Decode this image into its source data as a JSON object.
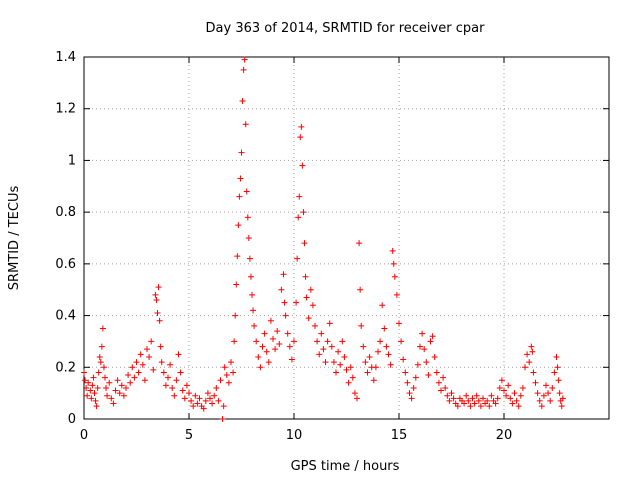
{
  "chart_data": {
    "type": "scatter",
    "title": "Day 363 of 2014, SRMTID for receiver cpar",
    "xlabel": "GPS time / hours",
    "ylabel": "SRMTID / TECUs",
    "xlim": [
      0,
      25
    ],
    "ylim": [
      0,
      1.4
    ],
    "grid": true,
    "marker": "+",
    "color": "#ff0000",
    "x_ticks": [
      0,
      5,
      10,
      15,
      20
    ],
    "x_tick_labels": [
      "0",
      "5",
      "10",
      "15",
      "20"
    ],
    "y_ticks": [
      0,
      0.2,
      0.4,
      0.6,
      0.8,
      1.0,
      1.2,
      1.4
    ],
    "y_tick_labels": [
      "0",
      "0.2",
      "0.4",
      "0.6",
      "0.8",
      "1",
      "1.2",
      "1.4"
    ],
    "series": [
      {
        "name": "SRMTID",
        "points": [
          [
            0.0,
            0.18
          ],
          [
            0.05,
            0.15
          ],
          [
            0.1,
            0.12
          ],
          [
            0.15,
            0.09
          ],
          [
            0.2,
            0.14
          ],
          [
            0.3,
            0.11
          ],
          [
            0.35,
            0.08
          ],
          [
            0.4,
            0.13
          ],
          [
            0.45,
            0.16
          ],
          [
            0.5,
            0.1
          ],
          [
            0.55,
            0.07
          ],
          [
            0.6,
            0.05
          ],
          [
            0.65,
            0.12
          ],
          [
            0.7,
            0.18
          ],
          [
            0.75,
            0.24
          ],
          [
            0.8,
            0.22
          ],
          [
            0.85,
            0.28
          ],
          [
            0.9,
            0.35
          ],
          [
            0.95,
            0.2
          ],
          [
            1.0,
            0.16
          ],
          [
            1.05,
            0.12
          ],
          [
            1.1,
            0.09
          ],
          [
            1.2,
            0.14
          ],
          [
            1.3,
            0.08
          ],
          [
            1.4,
            0.06
          ],
          [
            1.5,
            0.11
          ],
          [
            1.6,
            0.15
          ],
          [
            1.7,
            0.1
          ],
          [
            1.8,
            0.13
          ],
          [
            1.9,
            0.09
          ],
          [
            2.0,
            0.12
          ],
          [
            2.1,
            0.17
          ],
          [
            2.2,
            0.14
          ],
          [
            2.3,
            0.2
          ],
          [
            2.4,
            0.16
          ],
          [
            2.5,
            0.22
          ],
          [
            2.6,
            0.18
          ],
          [
            2.7,
            0.25
          ],
          [
            2.8,
            0.21
          ],
          [
            2.9,
            0.15
          ],
          [
            3.0,
            0.27
          ],
          [
            3.1,
            0.24
          ],
          [
            3.2,
            0.3
          ],
          [
            3.3,
            0.19
          ],
          [
            3.4,
            0.48
          ],
          [
            3.45,
            0.46
          ],
          [
            3.5,
            0.41
          ],
          [
            3.55,
            0.51
          ],
          [
            3.6,
            0.38
          ],
          [
            3.65,
            0.28
          ],
          [
            3.7,
            0.22
          ],
          [
            3.8,
            0.18
          ],
          [
            3.9,
            0.13
          ],
          [
            4.0,
            0.16
          ],
          [
            4.1,
            0.21
          ],
          [
            4.2,
            0.12
          ],
          [
            4.3,
            0.09
          ],
          [
            4.4,
            0.15
          ],
          [
            4.5,
            0.25
          ],
          [
            4.6,
            0.18
          ],
          [
            4.7,
            0.11
          ],
          [
            4.8,
            0.08
          ],
          [
            4.9,
            0.13
          ],
          [
            5.0,
            0.1
          ],
          [
            5.1,
            0.07
          ],
          [
            5.2,
            0.05
          ],
          [
            5.3,
            0.09
          ],
          [
            5.4,
            0.06
          ],
          [
            5.5,
            0.08
          ],
          [
            5.6,
            0.05
          ],
          [
            5.7,
            0.04
          ],
          [
            5.8,
            0.07
          ],
          [
            5.9,
            0.1
          ],
          [
            6.0,
            0.08
          ],
          [
            6.1,
            0.06
          ],
          [
            6.2,
            0.09
          ],
          [
            6.3,
            0.12
          ],
          [
            6.4,
            0.07
          ],
          [
            6.5,
            0.15
          ],
          [
            6.6,
            0.0
          ],
          [
            6.65,
            0.05
          ],
          [
            6.7,
            0.2
          ],
          [
            6.8,
            0.17
          ],
          [
            6.9,
            0.14
          ],
          [
            7.0,
            0.22
          ],
          [
            7.1,
            0.18
          ],
          [
            7.15,
            0.3
          ],
          [
            7.2,
            0.4
          ],
          [
            7.25,
            0.52
          ],
          [
            7.3,
            0.63
          ],
          [
            7.35,
            0.75
          ],
          [
            7.4,
            0.86
          ],
          [
            7.45,
            0.93
          ],
          [
            7.5,
            1.03
          ],
          [
            7.55,
            1.23
          ],
          [
            7.6,
            1.35
          ],
          [
            7.65,
            1.39
          ],
          [
            7.7,
            1.14
          ],
          [
            7.75,
            0.88
          ],
          [
            7.8,
            0.78
          ],
          [
            7.85,
            0.7
          ],
          [
            7.9,
            0.62
          ],
          [
            7.95,
            0.55
          ],
          [
            8.0,
            0.48
          ],
          [
            8.05,
            0.42
          ],
          [
            8.1,
            0.36
          ],
          [
            8.2,
            0.3
          ],
          [
            8.3,
            0.24
          ],
          [
            8.4,
            0.2
          ],
          [
            8.5,
            0.28
          ],
          [
            8.6,
            0.33
          ],
          [
            8.7,
            0.26
          ],
          [
            8.8,
            0.22
          ],
          [
            8.9,
            0.38
          ],
          [
            9.0,
            0.31
          ],
          [
            9.1,
            0.27
          ],
          [
            9.2,
            0.34
          ],
          [
            9.3,
            0.29
          ],
          [
            9.4,
            0.5
          ],
          [
            9.5,
            0.56
          ],
          [
            9.55,
            0.45
          ],
          [
            9.6,
            0.4
          ],
          [
            9.7,
            0.33
          ],
          [
            9.8,
            0.28
          ],
          [
            9.9,
            0.23
          ],
          [
            10.0,
            0.3
          ],
          [
            10.1,
            0.45
          ],
          [
            10.15,
            0.62
          ],
          [
            10.2,
            0.78
          ],
          [
            10.25,
            0.86
          ],
          [
            10.3,
            1.09
          ],
          [
            10.35,
            1.13
          ],
          [
            10.4,
            0.98
          ],
          [
            10.45,
            0.8
          ],
          [
            10.5,
            0.68
          ],
          [
            10.55,
            0.55
          ],
          [
            10.6,
            0.47
          ],
          [
            10.7,
            0.39
          ],
          [
            10.8,
            0.5
          ],
          [
            10.9,
            0.44
          ],
          [
            11.0,
            0.36
          ],
          [
            11.1,
            0.3
          ],
          [
            11.2,
            0.25
          ],
          [
            11.3,
            0.33
          ],
          [
            11.4,
            0.27
          ],
          [
            11.5,
            0.22
          ],
          [
            11.6,
            0.3
          ],
          [
            11.7,
            0.37
          ],
          [
            11.8,
            0.28
          ],
          [
            11.9,
            0.22
          ],
          [
            12.0,
            0.18
          ],
          [
            12.1,
            0.26
          ],
          [
            12.2,
            0.21
          ],
          [
            12.3,
            0.3
          ],
          [
            12.4,
            0.24
          ],
          [
            12.5,
            0.19
          ],
          [
            12.6,
            0.14
          ],
          [
            12.7,
            0.2
          ],
          [
            12.8,
            0.16
          ],
          [
            12.9,
            0.1
          ],
          [
            13.0,
            0.08
          ],
          [
            13.1,
            0.68
          ],
          [
            13.15,
            0.5
          ],
          [
            13.2,
            0.36
          ],
          [
            13.3,
            0.28
          ],
          [
            13.4,
            0.22
          ],
          [
            13.5,
            0.18
          ],
          [
            13.6,
            0.24
          ],
          [
            13.7,
            0.2
          ],
          [
            13.8,
            0.15
          ],
          [
            13.9,
            0.2
          ],
          [
            14.0,
            0.26
          ],
          [
            14.1,
            0.3
          ],
          [
            14.2,
            0.44
          ],
          [
            14.3,
            0.35
          ],
          [
            14.4,
            0.28
          ],
          [
            14.5,
            0.25
          ],
          [
            14.6,
            0.21
          ],
          [
            14.7,
            0.65
          ],
          [
            14.75,
            0.6
          ],
          [
            14.8,
            0.55
          ],
          [
            14.9,
            0.48
          ],
          [
            15.0,
            0.37
          ],
          [
            15.1,
            0.3
          ],
          [
            15.2,
            0.23
          ],
          [
            15.3,
            0.18
          ],
          [
            15.4,
            0.14
          ],
          [
            15.5,
            0.1
          ],
          [
            15.6,
            0.08
          ],
          [
            15.7,
            0.12
          ],
          [
            15.8,
            0.16
          ],
          [
            15.9,
            0.21
          ],
          [
            16.0,
            0.28
          ],
          [
            16.1,
            0.33
          ],
          [
            16.2,
            0.27
          ],
          [
            16.3,
            0.22
          ],
          [
            16.4,
            0.17
          ],
          [
            16.5,
            0.3
          ],
          [
            16.6,
            0.32
          ],
          [
            16.7,
            0.24
          ],
          [
            16.8,
            0.18
          ],
          [
            16.9,
            0.14
          ],
          [
            17.0,
            0.11
          ],
          [
            17.1,
            0.16
          ],
          [
            17.2,
            0.12
          ],
          [
            17.3,
            0.09
          ],
          [
            17.4,
            0.07
          ],
          [
            17.5,
            0.1
          ],
          [
            17.6,
            0.08
          ],
          [
            17.7,
            0.06
          ],
          [
            17.8,
            0.05
          ],
          [
            17.9,
            0.08
          ],
          [
            18.0,
            0.07
          ],
          [
            18.1,
            0.06
          ],
          [
            18.2,
            0.09
          ],
          [
            18.3,
            0.07
          ],
          [
            18.4,
            0.05
          ],
          [
            18.5,
            0.08
          ],
          [
            18.6,
            0.06
          ],
          [
            18.7,
            0.09
          ],
          [
            18.8,
            0.07
          ],
          [
            18.9,
            0.05
          ],
          [
            19.0,
            0.08
          ],
          [
            19.1,
            0.06
          ],
          [
            19.2,
            0.07
          ],
          [
            19.3,
            0.05
          ],
          [
            19.4,
            0.09
          ],
          [
            19.5,
            0.07
          ],
          [
            19.6,
            0.06
          ],
          [
            19.7,
            0.08
          ],
          [
            19.8,
            0.12
          ],
          [
            19.9,
            0.15
          ],
          [
            20.0,
            0.11
          ],
          [
            20.1,
            0.09
          ],
          [
            20.2,
            0.13
          ],
          [
            20.3,
            0.08
          ],
          [
            20.4,
            0.06
          ],
          [
            20.5,
            0.1
          ],
          [
            20.6,
            0.07
          ],
          [
            20.7,
            0.05
          ],
          [
            20.8,
            0.09
          ],
          [
            20.9,
            0.12
          ],
          [
            21.0,
            0.2
          ],
          [
            21.1,
            0.25
          ],
          [
            21.2,
            0.22
          ],
          [
            21.3,
            0.28
          ],
          [
            21.35,
            0.26
          ],
          [
            21.4,
            0.18
          ],
          [
            21.5,
            0.14
          ],
          [
            21.6,
            0.1
          ],
          [
            21.7,
            0.07
          ],
          [
            21.8,
            0.05
          ],
          [
            21.9,
            0.09
          ],
          [
            22.0,
            0.13
          ],
          [
            22.1,
            0.1
          ],
          [
            22.2,
            0.07
          ],
          [
            22.3,
            0.12
          ],
          [
            22.4,
            0.18
          ],
          [
            22.5,
            0.24
          ],
          [
            22.55,
            0.2
          ],
          [
            22.6,
            0.15
          ],
          [
            22.65,
            0.1
          ],
          [
            22.7,
            0.07
          ],
          [
            22.75,
            0.05
          ],
          [
            22.8,
            0.08
          ]
        ]
      }
    ]
  }
}
